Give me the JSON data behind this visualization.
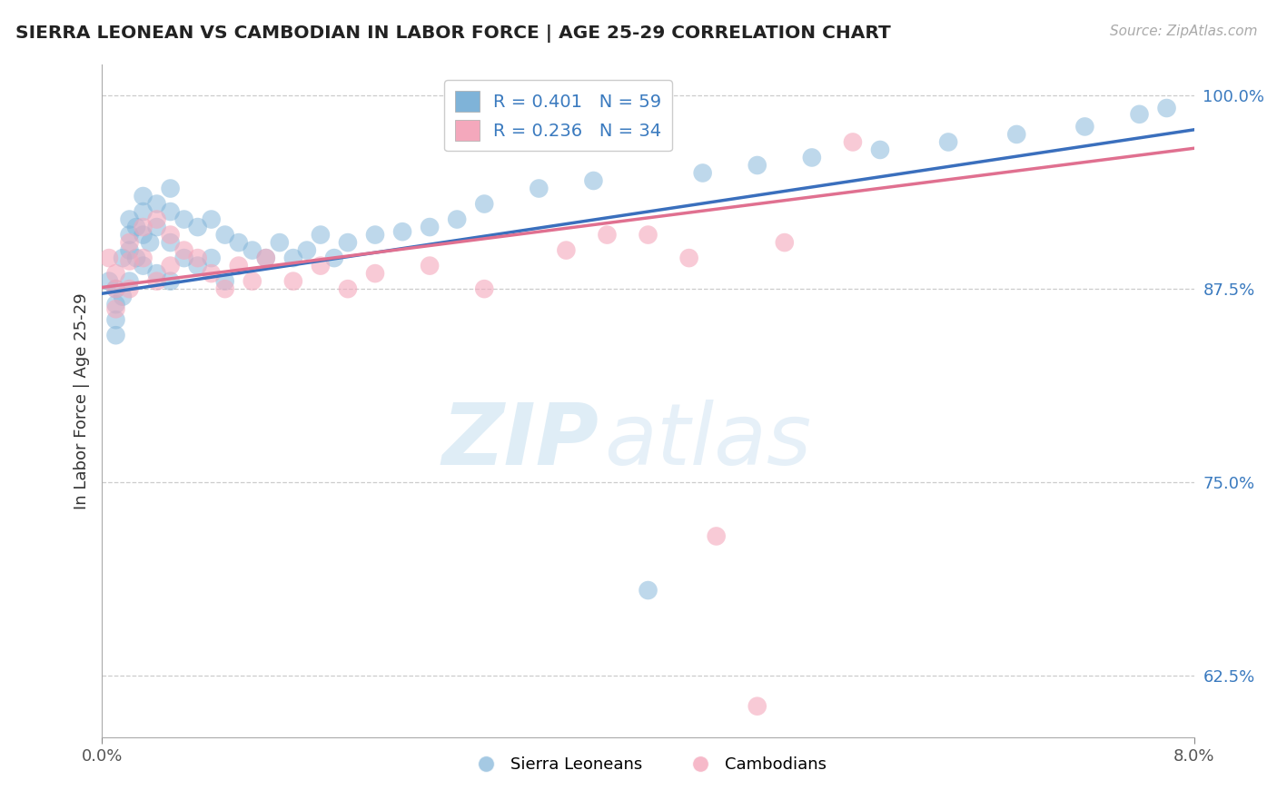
{
  "title": "SIERRA LEONEAN VS CAMBODIAN IN LABOR FORCE | AGE 25-29 CORRELATION CHART",
  "source_text": "Source: ZipAtlas.com",
  "ylabel": "In Labor Force | Age 25-29",
  "xlim": [
    0.0,
    0.08
  ],
  "ylim": [
    0.585,
    1.02
  ],
  "x_ticks": [
    0.0,
    0.08
  ],
  "x_tick_labels": [
    "0.0%",
    "8.0%"
  ],
  "y_ticks": [
    0.625,
    0.75,
    0.875,
    1.0
  ],
  "y_tick_labels": [
    "62.5%",
    "75.0%",
    "87.5%",
    "100.0%"
  ],
  "watermark_zip": "ZIP",
  "watermark_atlas": "atlas",
  "blue_color": "#7fb3d8",
  "pink_color": "#f4a8bc",
  "blue_line_color": "#3a6fbd",
  "pink_line_color": "#e07090",
  "sierra_x": [
    0.0005,
    0.001,
    0.001,
    0.001,
    0.001,
    0.0015,
    0.0015,
    0.002,
    0.002,
    0.002,
    0.002,
    0.0025,
    0.0025,
    0.003,
    0.003,
    0.003,
    0.003,
    0.0035,
    0.004,
    0.004,
    0.004,
    0.005,
    0.005,
    0.005,
    0.005,
    0.006,
    0.006,
    0.007,
    0.007,
    0.008,
    0.008,
    0.009,
    0.009,
    0.01,
    0.011,
    0.012,
    0.013,
    0.014,
    0.015,
    0.016,
    0.017,
    0.018,
    0.02,
    0.022,
    0.024,
    0.026,
    0.028,
    0.032,
    0.036,
    0.04,
    0.044,
    0.048,
    0.052,
    0.057,
    0.062,
    0.067,
    0.072,
    0.076,
    0.078
  ],
  "sierra_y": [
    0.88,
    0.875,
    0.865,
    0.855,
    0.845,
    0.895,
    0.87,
    0.92,
    0.91,
    0.9,
    0.88,
    0.915,
    0.895,
    0.935,
    0.925,
    0.91,
    0.89,
    0.905,
    0.93,
    0.915,
    0.885,
    0.94,
    0.925,
    0.905,
    0.88,
    0.92,
    0.895,
    0.915,
    0.89,
    0.92,
    0.895,
    0.91,
    0.88,
    0.905,
    0.9,
    0.895,
    0.905,
    0.895,
    0.9,
    0.91,
    0.895,
    0.905,
    0.91,
    0.912,
    0.915,
    0.92,
    0.93,
    0.94,
    0.945,
    0.68,
    0.95,
    0.955,
    0.96,
    0.965,
    0.97,
    0.975,
    0.98,
    0.988,
    0.992
  ],
  "cambodian_x": [
    0.0005,
    0.001,
    0.001,
    0.001,
    0.002,
    0.002,
    0.002,
    0.003,
    0.003,
    0.004,
    0.004,
    0.005,
    0.005,
    0.006,
    0.007,
    0.008,
    0.009,
    0.01,
    0.011,
    0.012,
    0.014,
    0.016,
    0.018,
    0.02,
    0.024,
    0.028,
    0.034,
    0.04,
    0.045,
    0.05,
    0.037,
    0.043,
    0.048,
    0.055
  ],
  "cambodian_y": [
    0.895,
    0.885,
    0.875,
    0.862,
    0.905,
    0.893,
    0.875,
    0.915,
    0.895,
    0.92,
    0.88,
    0.91,
    0.89,
    0.9,
    0.895,
    0.885,
    0.875,
    0.89,
    0.88,
    0.895,
    0.88,
    0.89,
    0.875,
    0.885,
    0.89,
    0.875,
    0.9,
    0.91,
    0.715,
    0.905,
    0.91,
    0.895,
    0.605,
    0.97
  ]
}
